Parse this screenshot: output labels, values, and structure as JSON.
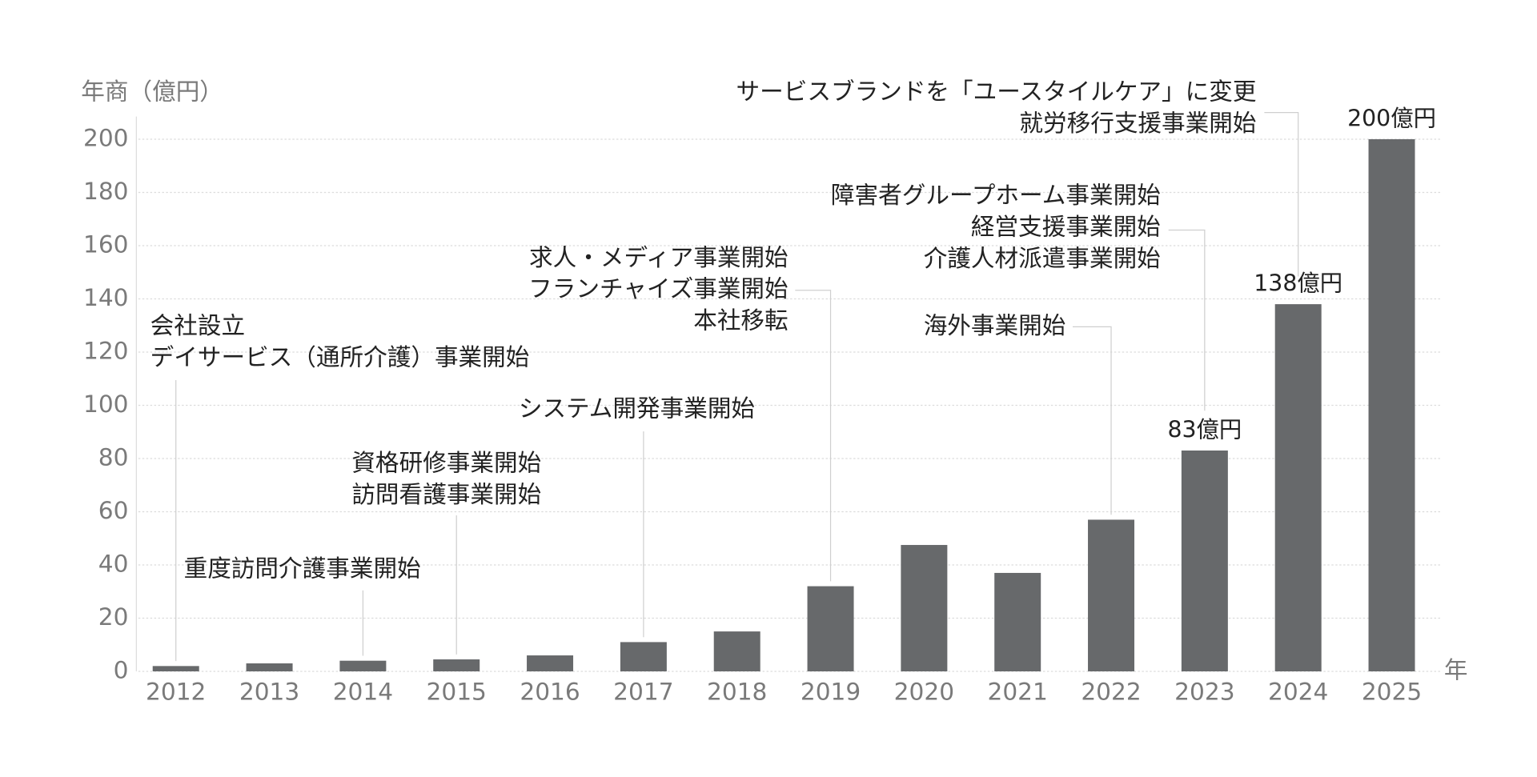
{
  "chart_data": {
    "type": "bar",
    "y_label": "年商（億円）",
    "x_label": "年",
    "categories": [
      "2012",
      "2013",
      "2014",
      "2015",
      "2016",
      "2017",
      "2018",
      "2019",
      "2020",
      "2021",
      "2022",
      "2023",
      "2024",
      "2025"
    ],
    "values": [
      2,
      3,
      4,
      4.5,
      6,
      11,
      15,
      32,
      47.5,
      37,
      57,
      83,
      138,
      200
    ],
    "value_labels": [
      null,
      null,
      null,
      null,
      null,
      null,
      null,
      null,
      null,
      null,
      null,
      "83億円",
      "138億円",
      "200億円"
    ],
    "color": "#67696b",
    "ylim": [
      0,
      200
    ],
    "yticks": [
      0,
      20,
      40,
      60,
      80,
      100,
      120,
      140,
      160,
      180,
      200
    ],
    "grid": true,
    "annotations": [
      {
        "category": "2012",
        "lines": [
          "会社設立",
          "デイサービス（通所介護）事業開始"
        ]
      },
      {
        "category": "2014",
        "lines": [
          "重度訪問介護事業開始"
        ]
      },
      {
        "category": "2015",
        "lines": [
          "資格研修事業開始",
          "訪問看護事業開始"
        ]
      },
      {
        "category": "2017",
        "lines": [
          "システム開発事業開始"
        ]
      },
      {
        "category": "2019",
        "lines": [
          "求人・メディア事業開始",
          "フランチャイズ事業開始",
          "本社移転"
        ]
      },
      {
        "category": "2022",
        "lines": [
          "海外事業開始"
        ]
      },
      {
        "category": "2023",
        "lines": [
          "障害者グループホーム事業開始",
          "経営支援事業開始",
          "介護人材派遣事業開始"
        ]
      },
      {
        "category": "2024",
        "lines": [
          "サービスブランドを「ユースタイルケア」に変更",
          "就労移行支援事業開始"
        ]
      }
    ]
  }
}
